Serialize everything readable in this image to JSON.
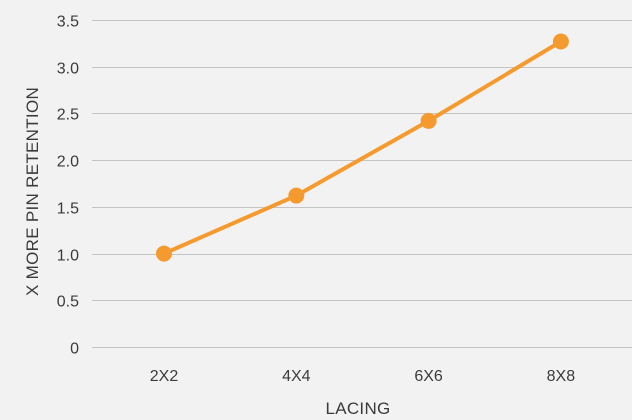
{
  "chart_data": {
    "type": "line",
    "title": "",
    "xlabel": "LACING",
    "ylabel": "X MORE PIN RETENTION",
    "categories": [
      "2X2",
      "4X4",
      "6X6",
      "8X8"
    ],
    "yticks": [
      "0",
      "0.5",
      "1.0",
      "1.5",
      "2.0",
      "2.5",
      "3.0",
      "3.5"
    ],
    "ylim": [
      0,
      3.5
    ],
    "grid": true,
    "series": [
      {
        "values": [
          1.0,
          1.62,
          2.42,
          3.27
        ],
        "color": "#f59a2f"
      }
    ]
  }
}
